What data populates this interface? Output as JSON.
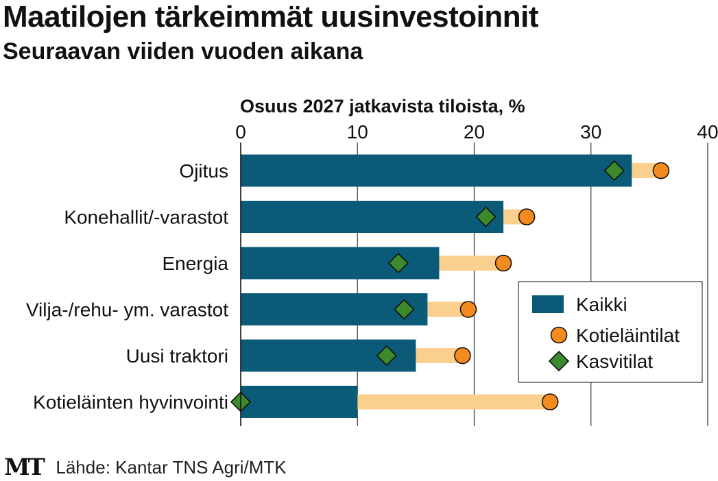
{
  "title": "Maatilojen tärkeimmät uusinvestoinnit",
  "subtitle": "Seuraavan viiden vuoden aikana",
  "logo": "MT",
  "source": "Lähde: Kantar TNS Agri/MTK",
  "colors": {
    "bar": "#0b5b78",
    "range": "#fbd08e",
    "circle": "#f58a1f",
    "diamond": "#3d8a2c",
    "grid": "#444444"
  },
  "chart_data": {
    "type": "bar",
    "orientation": "horizontal",
    "title": "Maatilojen tärkeimmät uusinvestoinnit",
    "subtitle": "Seuraavan viiden vuoden aikana",
    "xlabel": "Osuus 2027 jatkavista tiloista, %",
    "xlim": [
      0,
      40
    ],
    "xticks": [
      0,
      10,
      20,
      30,
      40
    ],
    "grid": true,
    "legend_position": "right",
    "categories": [
      "Ojitus",
      "Konehallit/-varastot",
      "Energia",
      "Vilja-/rehu- ym. varastot",
      "Uusi traktori",
      "Kotieläinten hyvinvointi"
    ],
    "series": [
      {
        "name": "Kaikki",
        "marker": "bar",
        "values": [
          33.5,
          22.5,
          17,
          16,
          15,
          10
        ]
      },
      {
        "name": "Kotieläintilat",
        "marker": "circle",
        "values": [
          36,
          24.5,
          22.5,
          19.5,
          19,
          26.5
        ]
      },
      {
        "name": "Kasvitilat",
        "marker": "diamond",
        "values": [
          32,
          21,
          13.5,
          14,
          12.5,
          0
        ]
      }
    ]
  }
}
